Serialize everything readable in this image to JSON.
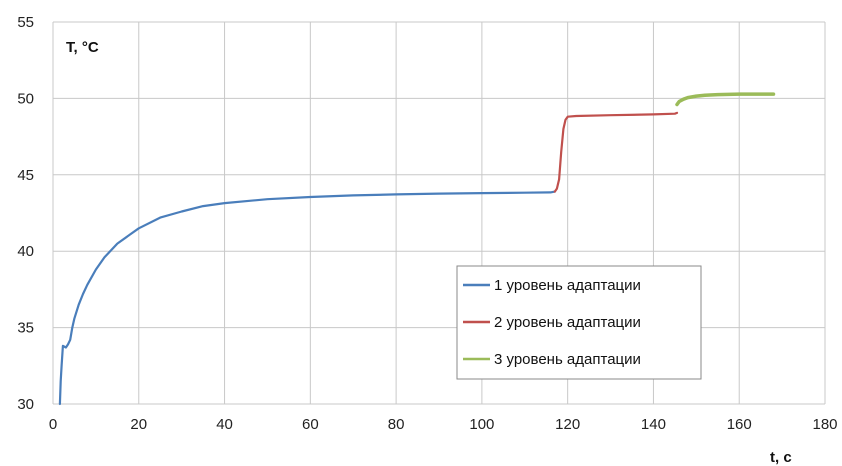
{
  "chart_data": {
    "type": "line",
    "title": "",
    "xlabel": "t, c",
    "ylabel": "T, °C",
    "xlim": [
      0,
      180
    ],
    "ylim": [
      30,
      55
    ],
    "xticks": [
      0,
      20,
      40,
      60,
      80,
      100,
      120,
      140,
      160,
      180
    ],
    "yticks": [
      30,
      35,
      40,
      45,
      50,
      55
    ],
    "grid": true,
    "legend_position": "lower-right",
    "series": [
      {
        "name": "1 уровень адаптации",
        "color": "#4a7ebb",
        "points": [
          [
            1.6,
            30.0
          ],
          [
            1.8,
            31.5
          ],
          [
            2.0,
            32.5
          ],
          [
            2.3,
            33.8
          ],
          [
            3.0,
            33.7
          ],
          [
            3.5,
            33.9
          ],
          [
            4.0,
            34.2
          ],
          [
            4.5,
            35.0
          ],
          [
            5,
            35.6
          ],
          [
            6,
            36.5
          ],
          [
            7,
            37.2
          ],
          [
            8,
            37.8
          ],
          [
            10,
            38.8
          ],
          [
            12,
            39.6
          ],
          [
            15,
            40.5
          ],
          [
            18,
            41.1
          ],
          [
            20,
            41.5
          ],
          [
            25,
            42.2
          ],
          [
            30,
            42.6
          ],
          [
            35,
            42.95
          ],
          [
            40,
            43.15
          ],
          [
            50,
            43.4
          ],
          [
            60,
            43.55
          ],
          [
            70,
            43.65
          ],
          [
            80,
            43.72
          ],
          [
            90,
            43.77
          ],
          [
            100,
            43.8
          ],
          [
            110,
            43.83
          ],
          [
            116,
            43.85
          ],
          [
            117,
            43.9
          ]
        ]
      },
      {
        "name": "2 уровень адаптации",
        "color": "#c0504d",
        "points": [
          [
            117,
            43.9
          ],
          [
            117.5,
            44.1
          ],
          [
            118,
            44.7
          ],
          [
            118.5,
            46.5
          ],
          [
            119,
            48.0
          ],
          [
            119.5,
            48.6
          ],
          [
            120,
            48.8
          ],
          [
            122,
            48.85
          ],
          [
            130,
            48.9
          ],
          [
            140,
            48.95
          ],
          [
            145,
            49.0
          ],
          [
            145.5,
            49.05
          ]
        ]
      },
      {
        "name": "3 уровень адаптации",
        "color": "#9bbb59",
        "points": [
          [
            145.5,
            49.6
          ],
          [
            146,
            49.8
          ],
          [
            147,
            49.95
          ],
          [
            148,
            50.05
          ],
          [
            150,
            50.15
          ],
          [
            152,
            50.2
          ],
          [
            155,
            50.25
          ],
          [
            160,
            50.28
          ],
          [
            165,
            50.28
          ],
          [
            168,
            50.28
          ]
        ]
      }
    ]
  }
}
